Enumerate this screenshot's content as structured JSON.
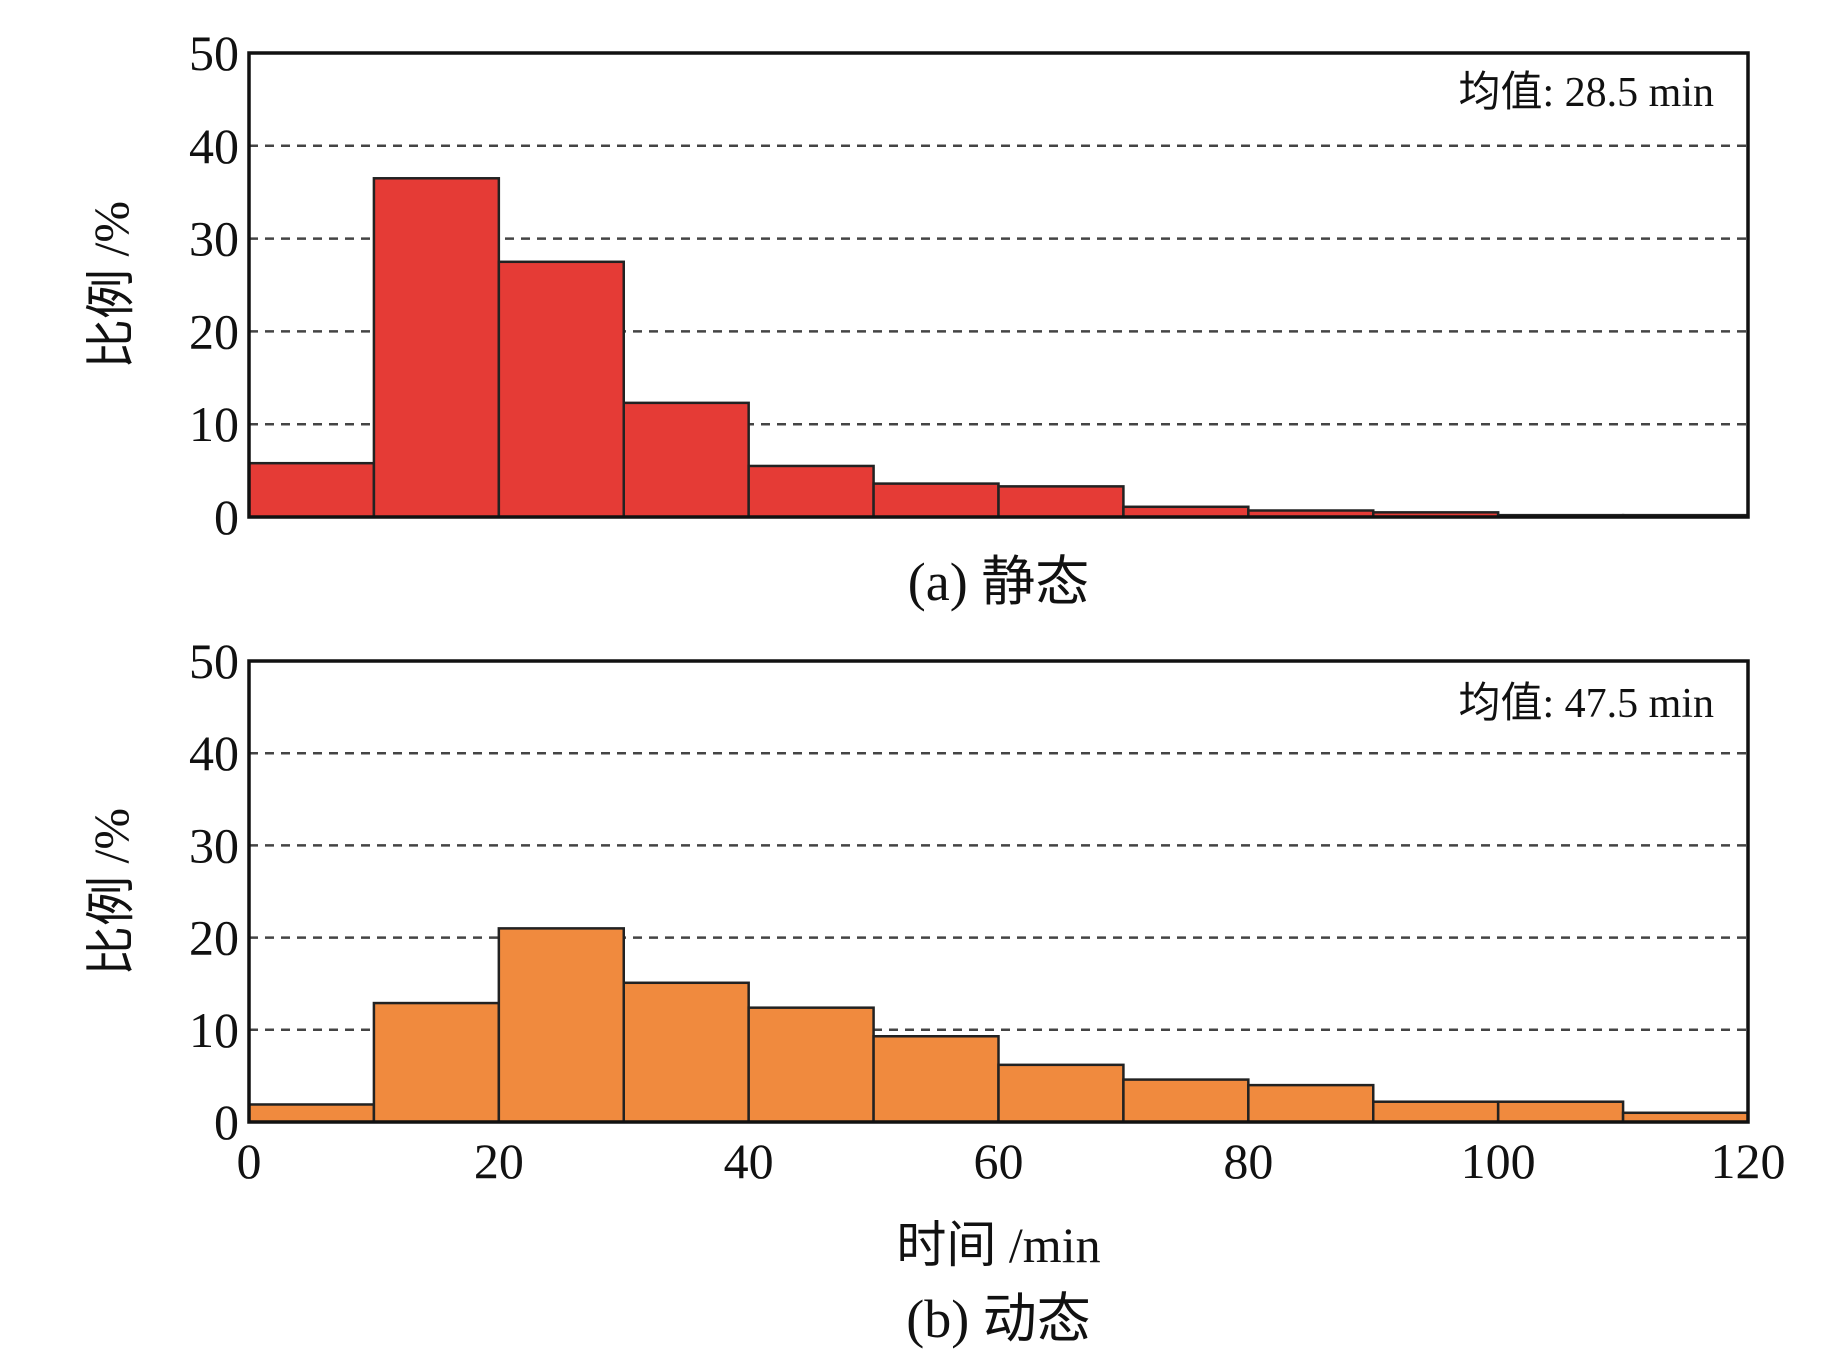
{
  "chart_data": [
    {
      "type": "bar",
      "caption": "(a) 静态",
      "ylabel": "比例 /%",
      "xlabel": "",
      "annotation": "均值: 28.5 min",
      "bar_color": "#e53b36",
      "x_bins": [
        [
          0,
          10
        ],
        [
          10,
          20
        ],
        [
          20,
          30
        ],
        [
          30,
          40
        ],
        [
          40,
          50
        ],
        [
          50,
          60
        ],
        [
          60,
          70
        ],
        [
          70,
          80
        ],
        [
          80,
          90
        ],
        [
          90,
          100
        ],
        [
          100,
          110
        ],
        [
          110,
          120
        ]
      ],
      "values": [
        5.8,
        36.5,
        27.5,
        12.3,
        5.5,
        3.6,
        3.3,
        1.1,
        0.7,
        0.5,
        0.2,
        0.2
      ],
      "xlim": [
        0,
        120
      ],
      "ylim": [
        0,
        50
      ],
      "yticks": [
        "0",
        "10",
        "20",
        "30",
        "40",
        "50"
      ],
      "xticks": [],
      "grid": "dashed horizontal"
    },
    {
      "type": "bar",
      "caption": "(b) 动态",
      "ylabel": "比例 /%",
      "xlabel": "时间 /min",
      "annotation": "均值: 47.5 min",
      "bar_color": "#f08a3e",
      "x_bins": [
        [
          0,
          10
        ],
        [
          10,
          20
        ],
        [
          20,
          30
        ],
        [
          30,
          40
        ],
        [
          40,
          50
        ],
        [
          50,
          60
        ],
        [
          60,
          70
        ],
        [
          70,
          80
        ],
        [
          80,
          90
        ],
        [
          90,
          100
        ],
        [
          100,
          110
        ],
        [
          110,
          120
        ]
      ],
      "values": [
        1.9,
        12.9,
        21.0,
        15.1,
        12.4,
        9.3,
        6.2,
        4.6,
        4.0,
        2.2,
        2.2,
        1.0
      ],
      "xlim": [
        0,
        120
      ],
      "ylim": [
        0,
        50
      ],
      "yticks": [
        "0",
        "10",
        "20",
        "30",
        "40",
        "50"
      ],
      "xticks": [
        "0",
        "20",
        "40",
        "60",
        "80",
        "100",
        "120"
      ],
      "grid": "dashed horizontal"
    }
  ]
}
